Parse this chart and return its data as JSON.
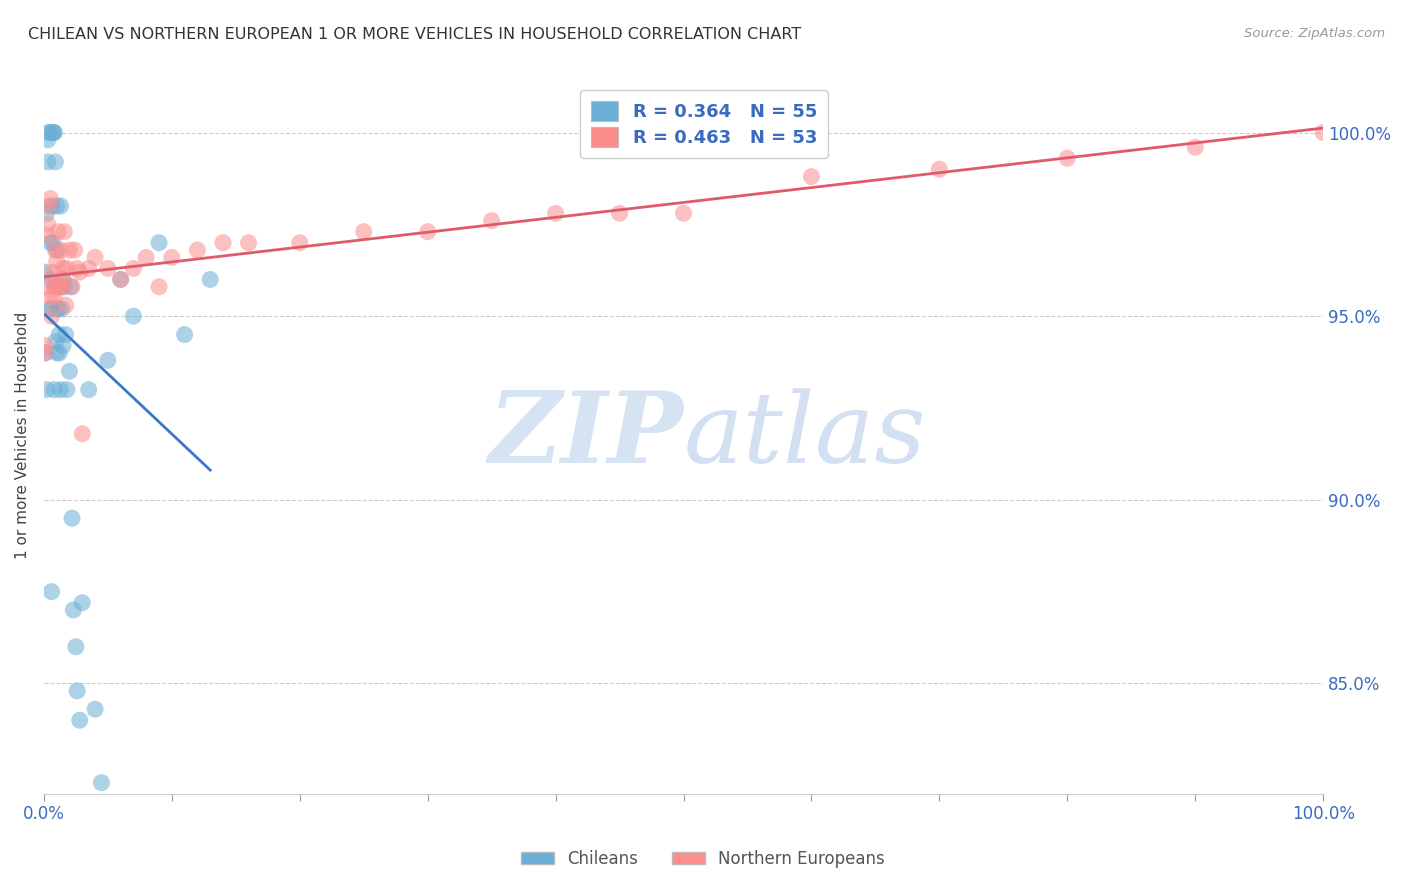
{
  "title": "CHILEAN VS NORTHERN EUROPEAN 1 OR MORE VEHICLES IN HOUSEHOLD CORRELATION CHART",
  "source": "Source: ZipAtlas.com",
  "ylabel": "1 or more Vehicles in Household",
  "ylabel_ticks": [
    "85.0%",
    "90.0%",
    "95.0%",
    "100.0%"
  ],
  "ylabel_values": [
    85.0,
    90.0,
    95.0,
    100.0
  ],
  "xmin": 0.0,
  "xmax": 100.0,
  "ymin": 82.0,
  "ymax": 101.5,
  "blue_R": 0.364,
  "blue_N": 55,
  "pink_R": 0.463,
  "pink_N": 53,
  "blue_color": "#6baed6",
  "pink_color": "#fc8d8d",
  "blue_line_color": "#3a78c9",
  "pink_line_color": "#e05a6a",
  "legend_text_color": "#3a6bbf",
  "watermark_zip": "ZIP",
  "watermark_atlas": "atlas",
  "watermark_color_zip": "#c8d8ee",
  "watermark_color_atlas": "#b8cce4",
  "chileans_x": [
    0.1,
    0.1,
    0.2,
    0.2,
    0.3,
    0.3,
    0.4,
    0.4,
    0.5,
    0.5,
    0.6,
    0.6,
    0.6,
    0.7,
    0.7,
    0.8,
    0.8,
    0.8,
    0.9,
    0.9,
    1.0,
    1.0,
    1.0,
    1.1,
    1.1,
    1.2,
    1.2,
    1.3,
    1.3,
    1.4,
    1.5,
    1.5,
    1.6,
    1.7,
    1.8,
    2.0,
    2.1,
    2.2,
    2.3,
    2.5,
    2.6,
    2.8,
    3.0,
    3.5,
    4.0,
    4.5,
    5.0,
    6.0,
    7.0,
    9.0,
    11.0,
    13.0,
    1.3,
    0.9,
    0.6
  ],
  "chileans_y": [
    94.0,
    96.2,
    93.0,
    97.8,
    99.2,
    99.8,
    100.0,
    100.0,
    97.0,
    95.2,
    96.0,
    98.0,
    95.2,
    97.0,
    100.0,
    100.0,
    100.0,
    93.0,
    94.3,
    95.8,
    96.8,
    98.0,
    94.0,
    95.2,
    95.2,
    94.5,
    94.0,
    95.8,
    93.0,
    95.2,
    96.0,
    94.2,
    95.8,
    94.5,
    93.0,
    93.5,
    95.8,
    89.5,
    87.0,
    86.0,
    84.8,
    84.0,
    87.2,
    93.0,
    84.3,
    82.3,
    93.8,
    96.0,
    95.0,
    97.0,
    94.5,
    96.0,
    98.0,
    99.2,
    87.5
  ],
  "northern_x": [
    0.1,
    0.2,
    0.3,
    0.4,
    0.5,
    0.6,
    0.7,
    0.8,
    0.9,
    1.0,
    1.1,
    1.2,
    1.3,
    1.4,
    1.5,
    1.6,
    1.7,
    1.8,
    2.0,
    2.2,
    2.4,
    2.6,
    2.8,
    3.0,
    3.5,
    4.0,
    5.0,
    6.0,
    7.0,
    8.0,
    9.0,
    10.0,
    12.0,
    14.0,
    16.0,
    20.0,
    25.0,
    30.0,
    35.0,
    40.0,
    45.0,
    50.0,
    60.0,
    70.0,
    80.0,
    90.0,
    100.0,
    1.5,
    1.0,
    0.8,
    0.5,
    0.3,
    0.1
  ],
  "northern_y": [
    94.2,
    95.8,
    97.2,
    98.0,
    95.5,
    95.0,
    96.2,
    95.5,
    96.8,
    95.8,
    97.3,
    95.8,
    96.8,
    95.8,
    96.3,
    97.3,
    95.3,
    96.3,
    96.8,
    95.8,
    96.8,
    96.3,
    96.2,
    91.8,
    96.3,
    96.6,
    96.3,
    96.0,
    96.3,
    96.6,
    95.8,
    96.6,
    96.8,
    97.0,
    97.0,
    97.0,
    97.3,
    97.3,
    97.6,
    97.8,
    97.8,
    97.8,
    98.8,
    99.0,
    99.3,
    99.6,
    100.0,
    96.0,
    96.5,
    95.8,
    98.2,
    97.5,
    94.0
  ]
}
